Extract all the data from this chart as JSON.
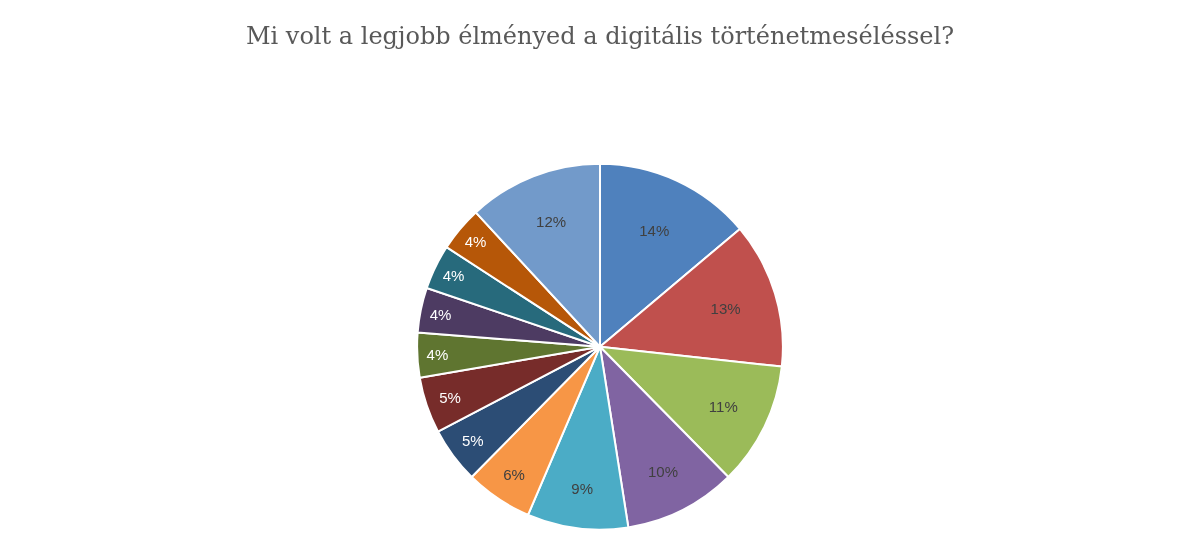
{
  "chart_data": {
    "type": "pie",
    "title": "Mi volt a legjobb élményed a digitális történetmeséléssel?",
    "categories": [
      null,
      null,
      null,
      null,
      null,
      null,
      null,
      null,
      null,
      null,
      null,
      null,
      null
    ],
    "values": [
      14,
      13,
      11,
      10,
      9,
      6,
      5,
      5,
      4,
      4,
      4,
      4,
      12
    ],
    "colors": [
      "#4f81bd",
      "#c0504d",
      "#9bbb59",
      "#8064a2",
      "#4bacc6",
      "#f79646",
      "#2c4d75",
      "#772c2a",
      "#5f7530",
      "#4d3b62",
      "#276a7c",
      "#b65708",
      "#729aca"
    ],
    "value_labels": [
      "14%",
      "13%",
      "11%",
      "10%",
      "9%",
      "6%",
      "5%",
      "5%",
      "4%",
      "4%",
      "4%",
      "4%",
      "12%"
    ],
    "legend": false
  }
}
